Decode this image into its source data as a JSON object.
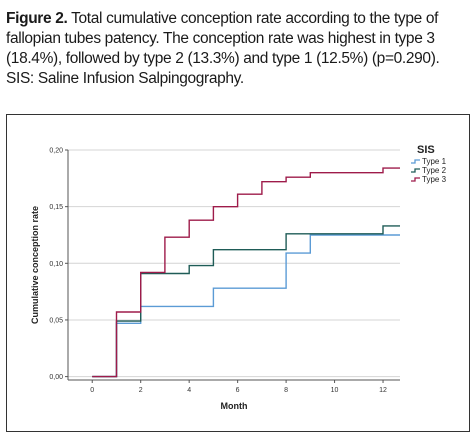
{
  "caption": {
    "label": "Figure 2.",
    "text": " Total cumulative conception rate according to the type of fallopian tubes patency. The conception rate was highest in type 3 (18.4%), followed by type 2 (13.3%) and type 1 (12.5%) (p=0.290). SIS: Saline Infusion Salpingography."
  },
  "chart_data": {
    "type": "line",
    "step": true,
    "xlabel": "Month",
    "ylabel": "Cumulative conception rate",
    "xlim": [
      -1,
      12.7
    ],
    "ylim": [
      -0.003,
      0.2
    ],
    "xticks": [
      0,
      2,
      4,
      6,
      8,
      10,
      12
    ],
    "yticks": [
      0.0,
      0.05,
      0.1,
      0.15,
      0.2
    ],
    "ytick_labels": [
      "0,00",
      "0,05",
      "0,10",
      "0,15",
      "0,20"
    ],
    "grid": "horizontal",
    "legend": {
      "title": "SIS",
      "position": "top-right"
    },
    "series": [
      {
        "name": "Type 1",
        "color": "#5b9bd5",
        "points": [
          [
            0,
            0.0
          ],
          [
            1,
            0.0
          ],
          [
            1,
            0.047
          ],
          [
            2,
            0.047
          ],
          [
            2,
            0.062
          ],
          [
            5,
            0.062
          ],
          [
            5,
            0.078
          ],
          [
            8,
            0.078
          ],
          [
            8,
            0.109
          ],
          [
            9,
            0.109
          ],
          [
            9,
            0.125
          ],
          [
            12.7,
            0.125
          ]
        ]
      },
      {
        "name": "Type 2",
        "color": "#1f5c57",
        "points": [
          [
            0,
            0.0
          ],
          [
            1,
            0.0
          ],
          [
            1,
            0.049
          ],
          [
            2,
            0.049
          ],
          [
            2,
            0.091
          ],
          [
            4,
            0.091
          ],
          [
            4,
            0.098
          ],
          [
            5,
            0.098
          ],
          [
            5,
            0.112
          ],
          [
            8,
            0.112
          ],
          [
            8,
            0.126
          ],
          [
            12,
            0.126
          ],
          [
            12,
            0.133
          ],
          [
            12.7,
            0.133
          ]
        ]
      },
      {
        "name": "Type 3",
        "color": "#9e1b4a",
        "points": [
          [
            0,
            0.0
          ],
          [
            1,
            0.0
          ],
          [
            1,
            0.057
          ],
          [
            2,
            0.057
          ],
          [
            2,
            0.092
          ],
          [
            3,
            0.092
          ],
          [
            3,
            0.123
          ],
          [
            4,
            0.123
          ],
          [
            4,
            0.138
          ],
          [
            5,
            0.138
          ],
          [
            5,
            0.15
          ],
          [
            6,
            0.15
          ],
          [
            6,
            0.161
          ],
          [
            7,
            0.161
          ],
          [
            7,
            0.172
          ],
          [
            8,
            0.172
          ],
          [
            8,
            0.176
          ],
          [
            9,
            0.176
          ],
          [
            9,
            0.18
          ],
          [
            12,
            0.18
          ],
          [
            12,
            0.184
          ],
          [
            12.7,
            0.184
          ]
        ]
      }
    ]
  }
}
